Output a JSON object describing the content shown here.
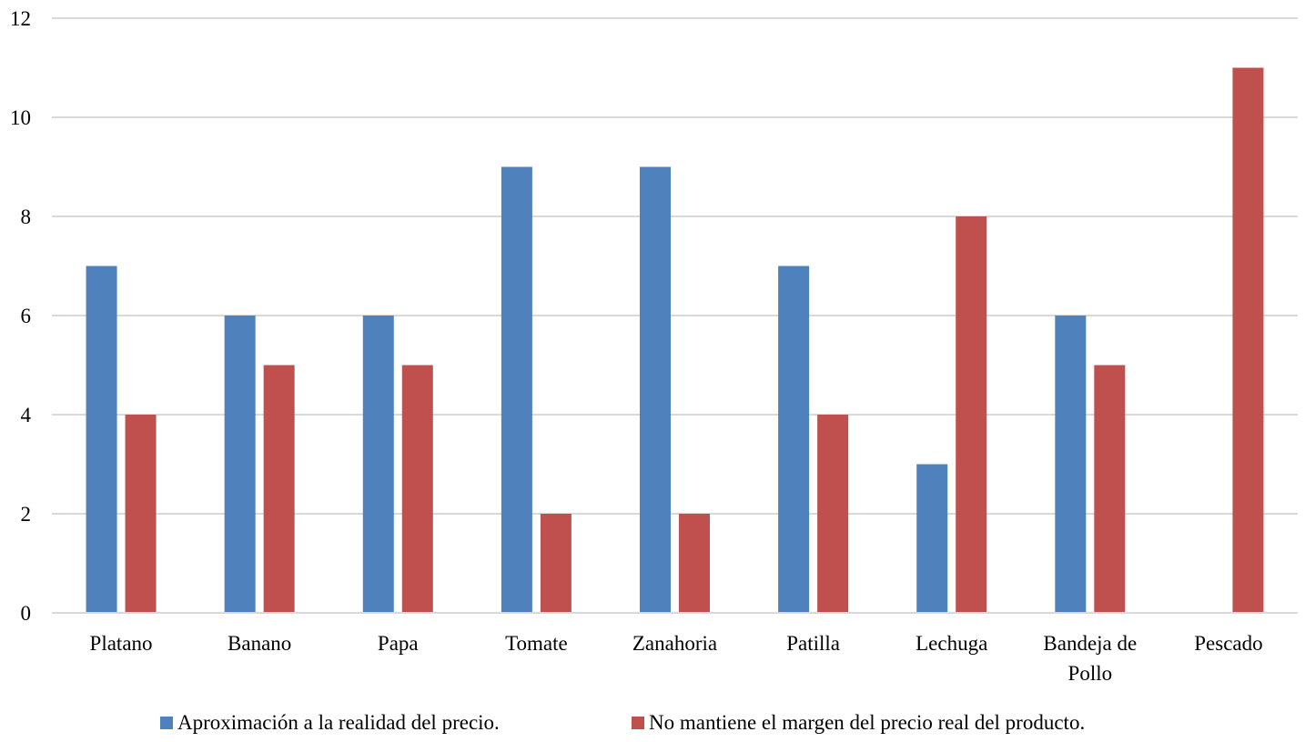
{
  "chart_data": {
    "type": "bar",
    "title": "",
    "xlabel": "",
    "ylabel": "",
    "ylim": [
      0,
      12
    ],
    "yticks": [
      "0",
      "2",
      "4",
      "6",
      "8",
      "10",
      "12"
    ],
    "grid": true,
    "legend_position": "bottom",
    "categories": [
      [
        "Platano"
      ],
      [
        "Banano"
      ],
      [
        "Papa"
      ],
      [
        "Tomate"
      ],
      [
        "Zanahoria"
      ],
      [
        "Patilla"
      ],
      [
        "Lechuga"
      ],
      [
        "Bandeja de",
        "Pollo"
      ],
      [
        "Pescado"
      ]
    ],
    "series": [
      {
        "name": "Aproximación a la realidad del precio.",
        "color": "#4F81BD",
        "values": [
          7,
          6,
          6,
          9,
          9,
          7,
          3,
          6,
          0
        ]
      },
      {
        "name": "No mantiene el margen del precio real del producto.",
        "color": "#C0504D",
        "values": [
          4,
          5,
          5,
          2,
          2,
          4,
          8,
          5,
          11
        ]
      }
    ]
  }
}
